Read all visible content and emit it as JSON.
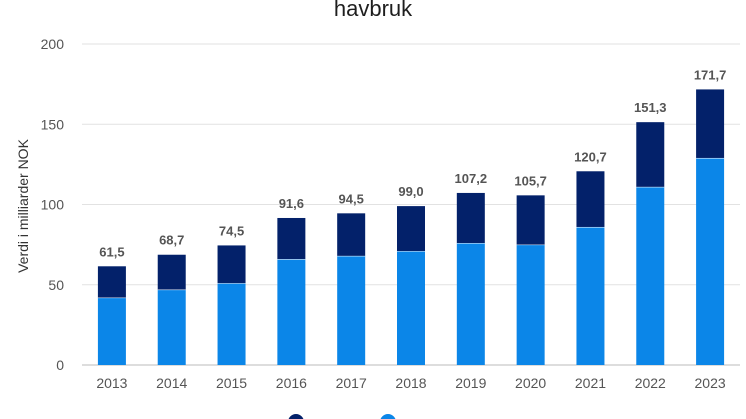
{
  "chart_data": {
    "type": "bar",
    "stacked": true,
    "title": "havbruk",
    "xlabel": "",
    "ylabel": "Verdi i milliarder NOK",
    "ylim": [
      0,
      200
    ],
    "yticks": [
      "0",
      "50",
      "100",
      "150",
      "200"
    ],
    "grid": true,
    "legend_position": "bottom",
    "categories": [
      "2013",
      "2014",
      "2015",
      "2016",
      "2017",
      "2018",
      "2019",
      "2020",
      "2021",
      "2022",
      "2023"
    ],
    "series": [
      {
        "name": "",
        "color": "#0b86e8",
        "values": [
          42,
          47,
          51,
          66,
          68,
          71,
          76,
          75,
          86,
          111,
          129
        ]
      },
      {
        "name": "",
        "color": "#03216a",
        "values": [
          19.5,
          21.7,
          23.5,
          25.6,
          26.5,
          28.0,
          31.2,
          30.7,
          34.7,
          40.3,
          42.7
        ]
      }
    ],
    "total_labels": [
      "61,5",
      "68,7",
      "74,5",
      "91,6",
      "94,5",
      "99,0",
      "107,2",
      "105,7",
      "120,7",
      "151,3",
      "171,7"
    ],
    "totals": [
      61.5,
      68.7,
      74.5,
      91.6,
      94.5,
      99.0,
      107.2,
      105.7,
      120.7,
      151.3,
      171.7
    ]
  }
}
